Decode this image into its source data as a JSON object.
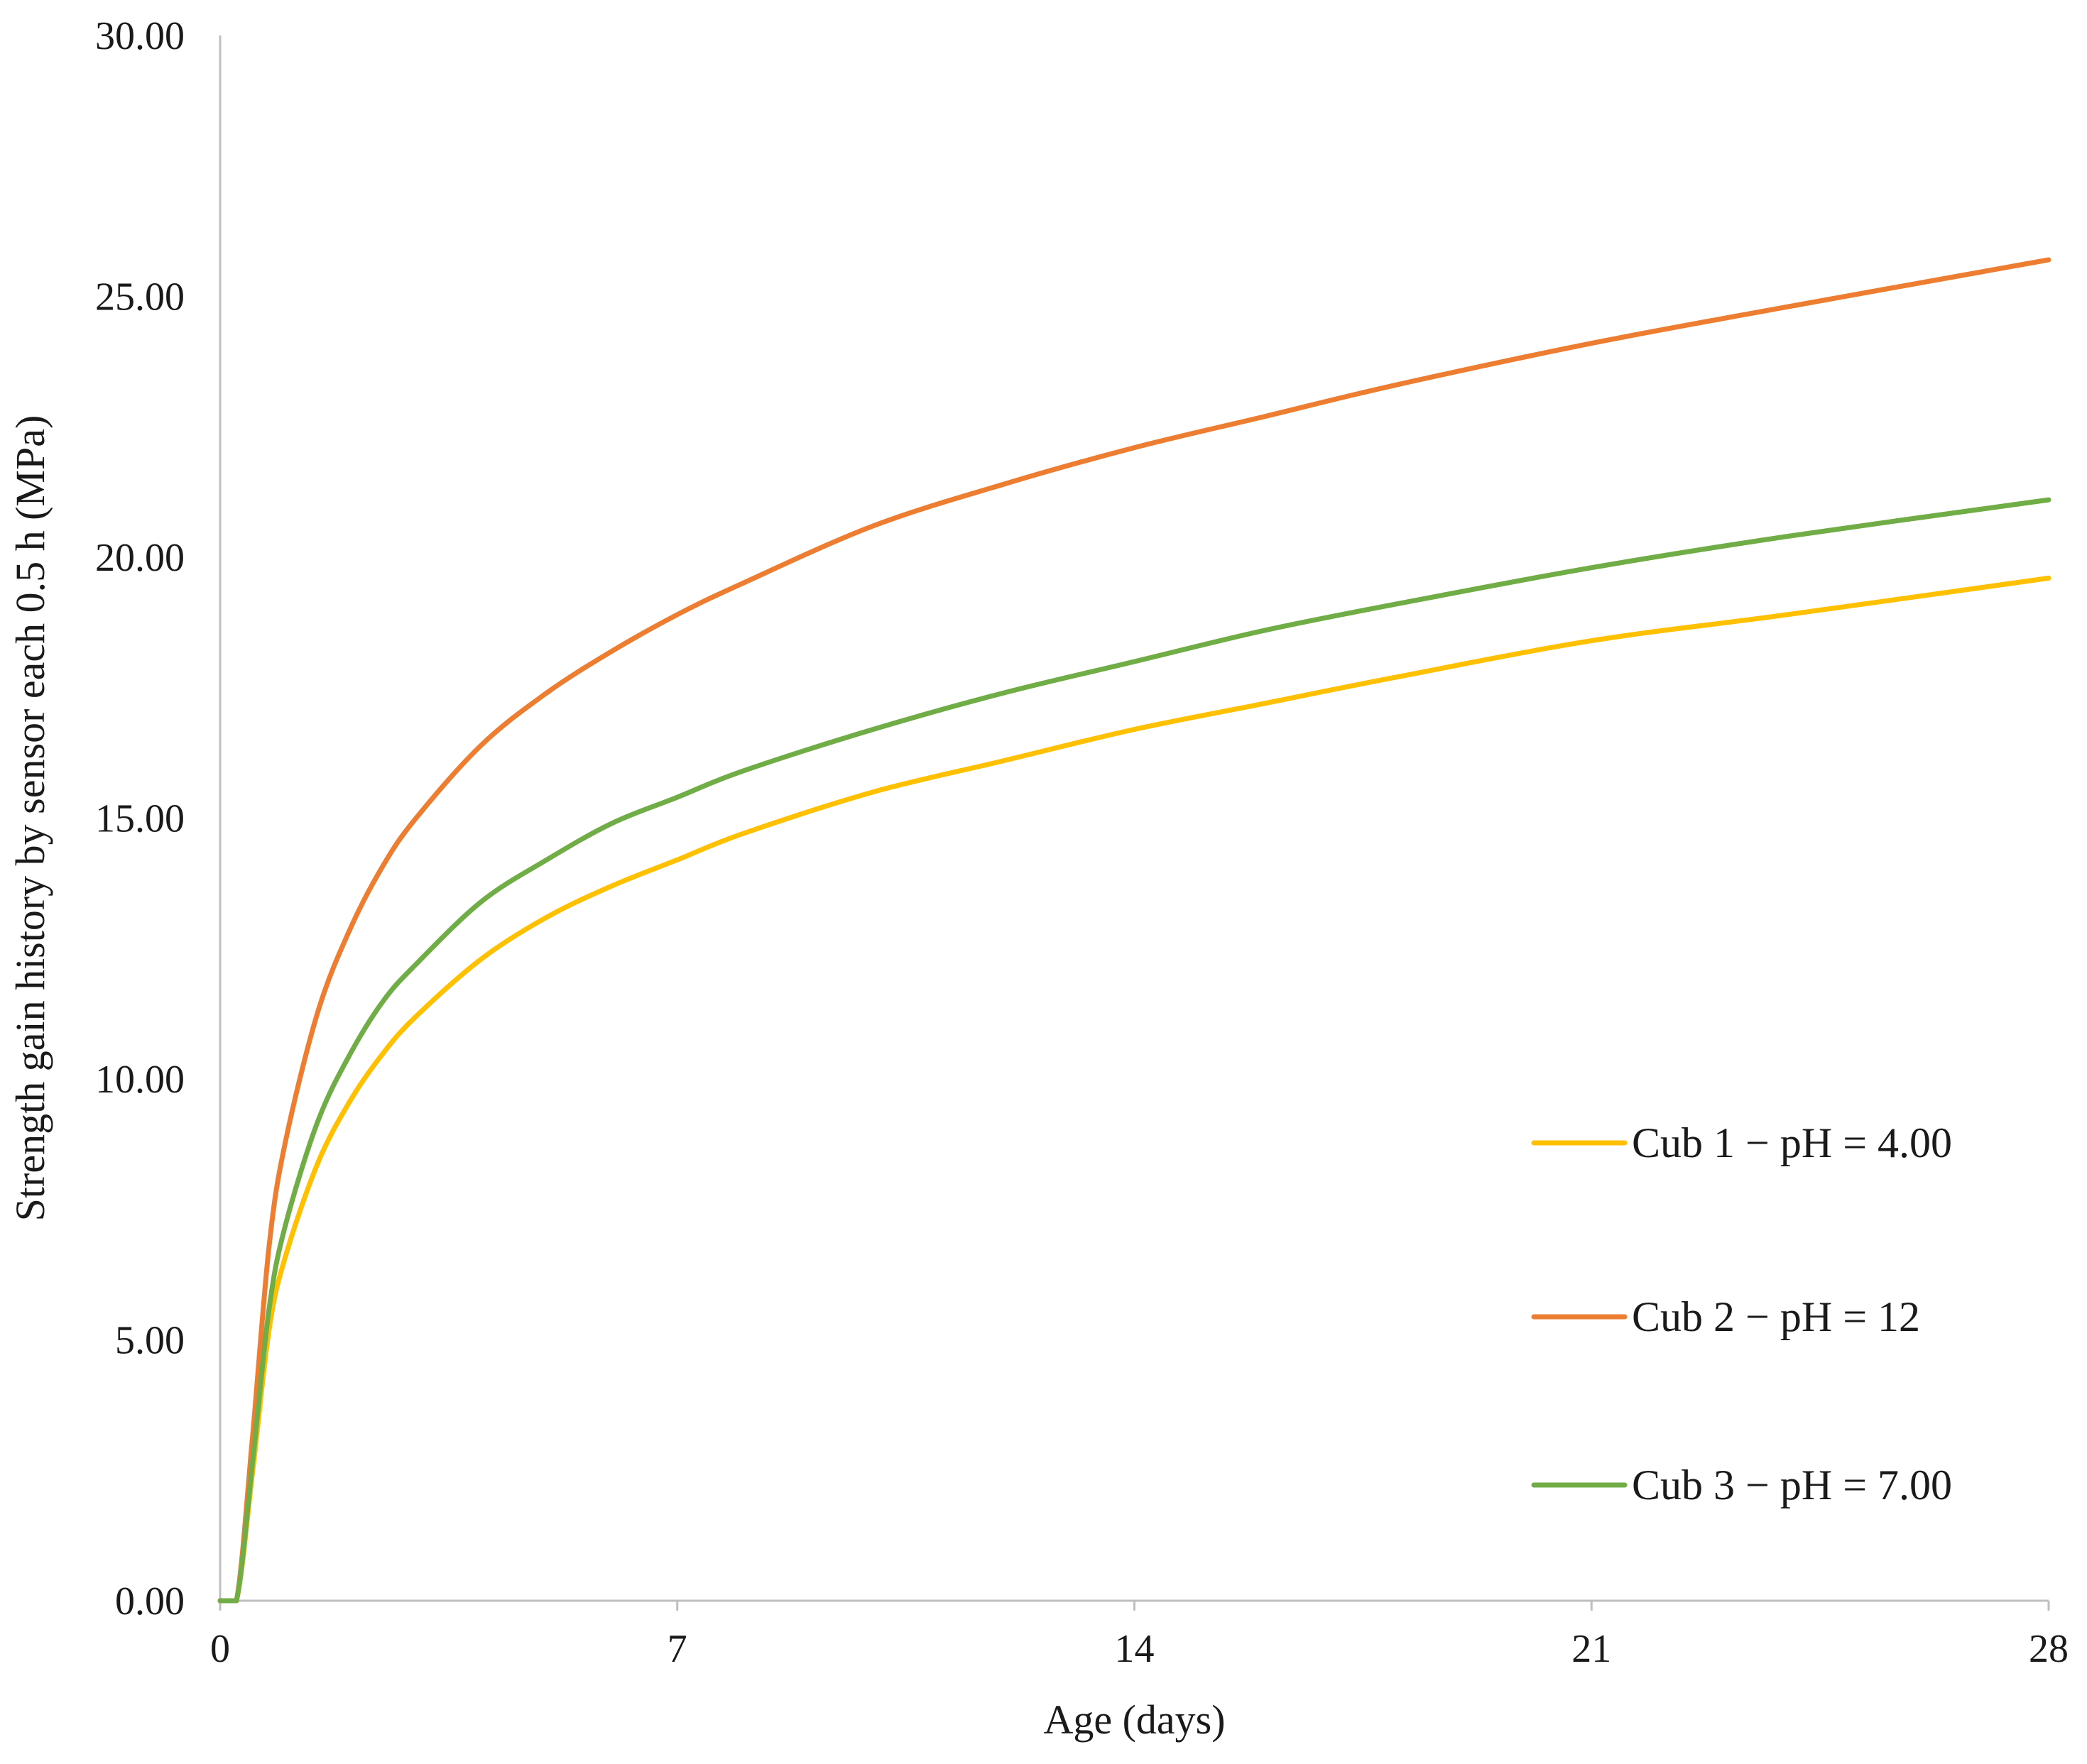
{
  "chart_data": {
    "type": "line",
    "title": "",
    "xlabel": "Age (days)",
    "ylabel": "Strength gain history by sensor each 0.5 h (MPa)",
    "xlim": [
      0,
      28
    ],
    "ylim": [
      0,
      30
    ],
    "x_ticks": [
      0,
      7,
      14,
      21,
      28
    ],
    "x_tick_labels": [
      "0",
      "7",
      "14",
      "21",
      "28"
    ],
    "y_ticks": [
      0,
      5,
      10,
      15,
      20,
      25,
      30
    ],
    "y_tick_labels": [
      "0.00",
      "5.00",
      "10.00",
      "15.00",
      "20.00",
      "25.00",
      "30.00"
    ],
    "grid": false,
    "legend_position": "right",
    "x": [
      0,
      0.25,
      0.5,
      0.75,
      1,
      1.5,
      2,
      2.5,
      3,
      4,
      5,
      6,
      7,
      8,
      10,
      12,
      14,
      16,
      18,
      21,
      24,
      28
    ],
    "series": [
      {
        "name": "Cub 1 − pH = 4.00",
        "color": "#FFC000",
        "values": [
          0,
          0,
          2.5,
          5.2,
          6.6,
          8.4,
          9.6,
          10.5,
          11.2,
          12.3,
          13.1,
          13.7,
          14.2,
          14.7,
          15.5,
          16.1,
          16.7,
          17.2,
          17.7,
          18.4,
          18.9,
          19.6
        ]
      },
      {
        "name": "Cub 2 − pH = 12",
        "color": "#ED7D31",
        "values": [
          0,
          0,
          3.2,
          6.8,
          8.8,
          11.3,
          12.9,
          14.1,
          15.0,
          16.4,
          17.4,
          18.2,
          18.9,
          19.5,
          20.6,
          21.4,
          22.1,
          22.7,
          23.3,
          24.1,
          24.8,
          25.7
        ]
      },
      {
        "name": "Cub 3 − pH = 7.00",
        "color": "#70AD47",
        "values": [
          0,
          0,
          2.7,
          5.6,
          7.2,
          9.2,
          10.5,
          11.5,
          12.2,
          13.4,
          14.2,
          14.9,
          15.4,
          15.9,
          16.7,
          17.4,
          18.0,
          18.6,
          19.1,
          19.8,
          20.4,
          21.1
        ]
      }
    ]
  }
}
